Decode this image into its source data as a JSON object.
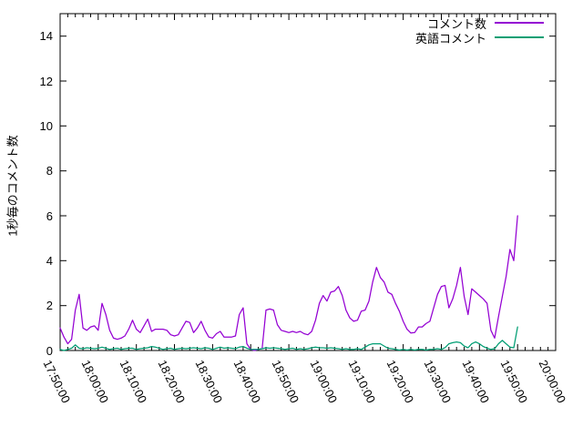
{
  "colors": {
    "background": "#ffffff",
    "axis": "#000000",
    "text": "#000000",
    "series_comments": "#9400d3",
    "series_english": "#009e73"
  },
  "chart_data": {
    "type": "line",
    "title": "",
    "xlabel": "",
    "ylabel": "1秒毎のコメント数",
    "ylim": [
      0,
      15
    ],
    "grid": false,
    "legend_position": "inside top-right",
    "ytick_values": [
      0,
      2,
      4,
      6,
      8,
      10,
      12,
      14
    ],
    "ytick_labels": [
      "0",
      "2",
      "4",
      "6",
      "8",
      "10",
      "12",
      "14"
    ],
    "xtick_labels": [
      "17:50:00",
      "18:00:00",
      "18:10:00",
      "18:20:00",
      "18:30:00",
      "18:40:00",
      "18:50:00",
      "19:00:00",
      "19:10:00",
      "19:20:00",
      "19:30:00",
      "19:40:00",
      "19:50:00",
      "20:00:00"
    ],
    "x_major_step_minutes": 10,
    "x_minor_step_minutes": 2,
    "x_total_minutes": 130,
    "series": [
      {
        "key": "comments",
        "name": "コメント数",
        "color": "#9400d3",
        "start_time": "17:50:00",
        "step_minutes": 1,
        "values": [
          1.0,
          0.6,
          0.3,
          0.5,
          1.8,
          2.5,
          1.0,
          0.9,
          1.05,
          1.1,
          0.9,
          2.1,
          1.6,
          0.9,
          0.55,
          0.5,
          0.55,
          0.65,
          0.95,
          1.35,
          0.95,
          0.8,
          1.1,
          1.4,
          0.85,
          0.95,
          0.95,
          0.95,
          0.9,
          0.7,
          0.65,
          0.7,
          1.0,
          1.3,
          1.25,
          0.8,
          1.0,
          1.3,
          0.9,
          0.6,
          0.55,
          0.75,
          0.85,
          0.6,
          0.6,
          0.6,
          0.65,
          1.6,
          1.9,
          0.3,
          0.05,
          0.0,
          0.05,
          0.1,
          1.8,
          1.85,
          1.8,
          1.15,
          0.9,
          0.85,
          0.8,
          0.85,
          0.8,
          0.85,
          0.75,
          0.7,
          0.85,
          1.35,
          2.1,
          2.45,
          2.2,
          2.6,
          2.65,
          2.85,
          2.45,
          1.8,
          1.45,
          1.3,
          1.35,
          1.75,
          1.8,
          2.2,
          3.05,
          3.7,
          3.25,
          3.05,
          2.6,
          2.5,
          2.1,
          1.75,
          1.3,
          0.95,
          0.78,
          0.8,
          1.05,
          1.05,
          1.2,
          1.3,
          1.9,
          2.5,
          2.85,
          2.9,
          1.9,
          2.3,
          2.9,
          3.7,
          2.4,
          1.6,
          2.75,
          2.6,
          2.45,
          2.3,
          2.1,
          0.9,
          0.55,
          1.5,
          2.4,
          3.3,
          4.5,
          4.0,
          6.0
        ]
      },
      {
        "key": "english-comments",
        "name": "英語コメント",
        "color": "#009e73",
        "start_time": "17:50:00",
        "step_minutes": 1,
        "values": [
          0.05,
          0.0,
          0.05,
          0.1,
          0.25,
          0.1,
          0.08,
          0.12,
          0.1,
          0.08,
          0.1,
          0.15,
          0.1,
          0.05,
          0.08,
          0.1,
          0.05,
          0.08,
          0.1,
          0.1,
          0.05,
          0.08,
          0.1,
          0.12,
          0.18,
          0.15,
          0.1,
          0.05,
          0.08,
          0.1,
          0.05,
          0.08,
          0.1,
          0.08,
          0.1,
          0.12,
          0.1,
          0.08,
          0.12,
          0.1,
          0.05,
          0.1,
          0.15,
          0.1,
          0.12,
          0.1,
          0.08,
          0.15,
          0.18,
          0.1,
          0.05,
          0.05,
          0.05,
          0.08,
          0.12,
          0.1,
          0.12,
          0.1,
          0.08,
          0.05,
          0.08,
          0.1,
          0.05,
          0.08,
          0.05,
          0.08,
          0.12,
          0.15,
          0.12,
          0.12,
          0.1,
          0.12,
          0.1,
          0.08,
          0.05,
          0.08,
          0.05,
          0.05,
          0.08,
          0.05,
          0.15,
          0.25,
          0.3,
          0.3,
          0.3,
          0.2,
          0.1,
          0.08,
          0.05,
          0.02,
          0.05,
          0.02,
          0.05,
          0.02,
          0.05,
          0.05,
          0.02,
          0.05,
          0.05,
          0.08,
          0.05,
          0.13,
          0.3,
          0.35,
          0.38,
          0.35,
          0.2,
          0.12,
          0.3,
          0.38,
          0.3,
          0.18,
          0.1,
          0.05,
          0.08,
          0.3,
          0.45,
          0.3,
          0.15,
          0.12,
          1.05
        ]
      }
    ]
  }
}
